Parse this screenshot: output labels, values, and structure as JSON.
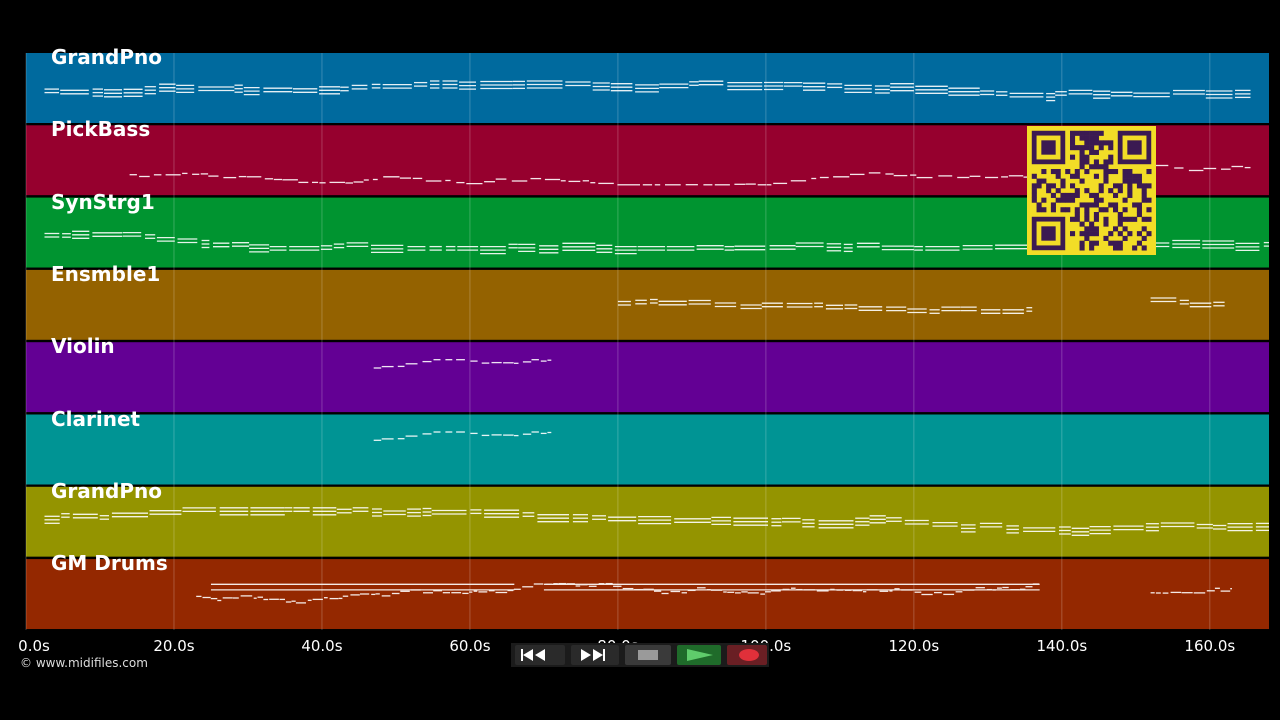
{
  "duration_s": 168,
  "tracks": [
    {
      "name": "GrandPno",
      "color": "#006a9e",
      "spans": [
        [
          2.5,
          165.5
        ]
      ],
      "density": "high",
      "pitchBase": 0.55,
      "seed": 11
    },
    {
      "name": "PickBass",
      "color": "#96002e",
      "spans": [
        [
          14,
          165.5
        ]
      ],
      "density": "low",
      "pitchBase": 0.7,
      "seed": 23
    },
    {
      "name": "SynStrg1",
      "color": "#009430",
      "spans": [
        [
          2.5,
          168
        ]
      ],
      "density": "high",
      "pitchBase": 0.55,
      "seed": 37
    },
    {
      "name": "Ensmble1",
      "color": "#946200",
      "spans": [
        [
          80,
          136
        ],
        [
          152,
          162
        ]
      ],
      "density": "mid",
      "pitchBase": 0.42,
      "seed": 41
    },
    {
      "name": "Violin",
      "color": "#630094",
      "spans": [
        [
          47,
          71
        ]
      ],
      "density": "low",
      "pitchBase": 0.4,
      "seed": 53
    },
    {
      "name": "Clarinet",
      "color": "#009494",
      "spans": [
        [
          47,
          71
        ]
      ],
      "density": "low",
      "pitchBase": 0.4,
      "seed": 53
    },
    {
      "name": "GrandPno",
      "color": "#949400",
      "spans": [
        [
          2.5,
          168
        ]
      ],
      "density": "high",
      "pitchBase": 0.45,
      "seed": 67
    },
    {
      "name": "GM Drums",
      "color": "#942800",
      "spans": [
        [
          23,
          137
        ],
        [
          152,
          163
        ]
      ],
      "density": "drums",
      "pitchBase": 0.5,
      "seed": 79
    }
  ],
  "time_axis": {
    "ticks": [
      0,
      20,
      40,
      60,
      80,
      100,
      120,
      140,
      160
    ],
    "labels": [
      "0.0s",
      "20.0s",
      "40.0s",
      "60.0s",
      "80.0s",
      "100.0s",
      "120.0s",
      "140.0s",
      "160.0s"
    ]
  },
  "credit": "© www.midifiles.com",
  "transport": {
    "buttons": [
      {
        "name": "rewind",
        "icon": "rewind-icon"
      },
      {
        "name": "fast-forward",
        "icon": "fast-forward-icon"
      },
      {
        "name": "stop",
        "icon": "stop-icon"
      },
      {
        "name": "play",
        "icon": "play-icon"
      },
      {
        "name": "record",
        "icon": "record-icon"
      }
    ]
  },
  "qr_code": {
    "icon": "qr-code-icon",
    "colors": {
      "fg": "#3b1a52",
      "bg": "#f2dd27"
    }
  }
}
